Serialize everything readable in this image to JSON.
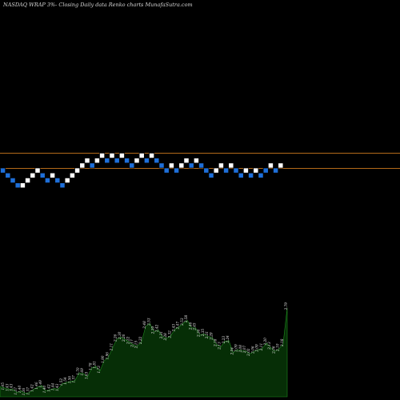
{
  "chart_data": {
    "type": "renko",
    "title": "NASDAQ WRAP 3%-  Closing Daily data  Renko  charts MunafaSutra.com",
    "upper_line_color": "#b36a1a",
    "lower_line_color": "#b36a1a",
    "up_brick_color": "#ffffff",
    "down_brick_color": "#1e6fd9",
    "volume_fill_color": "#062e06",
    "volume_edge_color": "#1f8a1f",
    "bricks": [
      {
        "dir": "down",
        "level": 0
      },
      {
        "dir": "down",
        "level": -1
      },
      {
        "dir": "down",
        "level": -2
      },
      {
        "dir": "down",
        "level": -3
      },
      {
        "dir": "up",
        "level": -3
      },
      {
        "dir": "up",
        "level": -2
      },
      {
        "dir": "up",
        "level": -1
      },
      {
        "dir": "up",
        "level": 0
      },
      {
        "dir": "down",
        "level": -1
      },
      {
        "dir": "down",
        "level": -2
      },
      {
        "dir": "up",
        "level": -1
      },
      {
        "dir": "down",
        "level": -2
      },
      {
        "dir": "down",
        "level": -3
      },
      {
        "dir": "up",
        "level": -2
      },
      {
        "dir": "up",
        "level": -1
      },
      {
        "dir": "up",
        "level": 0
      },
      {
        "dir": "up",
        "level": 1
      },
      {
        "dir": "up",
        "level": 2
      },
      {
        "dir": "down",
        "level": 1
      },
      {
        "dir": "up",
        "level": 2
      },
      {
        "dir": "up",
        "level": 3
      },
      {
        "dir": "down",
        "level": 2
      },
      {
        "dir": "up",
        "level": 3
      },
      {
        "dir": "down",
        "level": 2
      },
      {
        "dir": "up",
        "level": 3
      },
      {
        "dir": "down",
        "level": 2
      },
      {
        "dir": "down",
        "level": 1
      },
      {
        "dir": "up",
        "level": 2
      },
      {
        "dir": "up",
        "level": 3
      },
      {
        "dir": "down",
        "level": 2
      },
      {
        "dir": "up",
        "level": 3
      },
      {
        "dir": "down",
        "level": 2
      },
      {
        "dir": "down",
        "level": 1
      },
      {
        "dir": "down",
        "level": 0
      },
      {
        "dir": "up",
        "level": 1
      },
      {
        "dir": "down",
        "level": 0
      },
      {
        "dir": "up",
        "level": 1
      },
      {
        "dir": "up",
        "level": 2
      },
      {
        "dir": "down",
        "level": 1
      },
      {
        "dir": "up",
        "level": 2
      },
      {
        "dir": "down",
        "level": 1
      },
      {
        "dir": "down",
        "level": 0
      },
      {
        "dir": "down",
        "level": -1
      },
      {
        "dir": "up",
        "level": 0
      },
      {
        "dir": "up",
        "level": 1
      },
      {
        "dir": "down",
        "level": 0
      },
      {
        "dir": "up",
        "level": 1
      },
      {
        "dir": "down",
        "level": 0
      },
      {
        "dir": "down",
        "level": -1
      },
      {
        "dir": "up",
        "level": 0
      },
      {
        "dir": "down",
        "level": -1
      },
      {
        "dir": "up",
        "level": 0
      },
      {
        "dir": "down",
        "level": -1
      },
      {
        "dir": "down",
        "level": 0
      },
      {
        "dir": "up",
        "level": 1
      },
      {
        "dir": "down",
        "level": 0
      },
      {
        "dir": "up",
        "level": 1
      }
    ],
    "volume_labels": [
      "1.47",
      "1.45",
      "1.43",
      "1.43",
      "1.37",
      "1.40",
      "1.36",
      "1.37",
      "1.42",
      "1.46",
      "1.49",
      "1.40",
      "1.42",
      "1.44",
      "1.43",
      "1.52",
      "1.54",
      "1.56",
      "1.57",
      "1.70",
      "1.69",
      "1.63",
      "1.78",
      "1.81",
      "1.73",
      "1.90",
      "1.96",
      "2.11",
      "2.26",
      "2.30",
      "2.26",
      "2.22",
      "2.17",
      "2.15",
      "2.22",
      "2.48",
      "2.53",
      "2.39",
      "2.42",
      "2.31",
      "2.28",
      "2.32",
      "2.43",
      "2.47",
      "2.53",
      "2.58",
      "2.46",
      "2.45",
      "2.34",
      "2.35",
      "2.31",
      "2.29",
      "2.18",
      "2.13",
      "2.23",
      "2.24",
      "2.04",
      "2.09",
      "2.08",
      "2.07",
      "2.02",
      "2.06",
      "2.09",
      "2.11",
      "2.20",
      "2.13",
      "2.06",
      "2.10",
      "2.18",
      "2.79"
    ]
  }
}
